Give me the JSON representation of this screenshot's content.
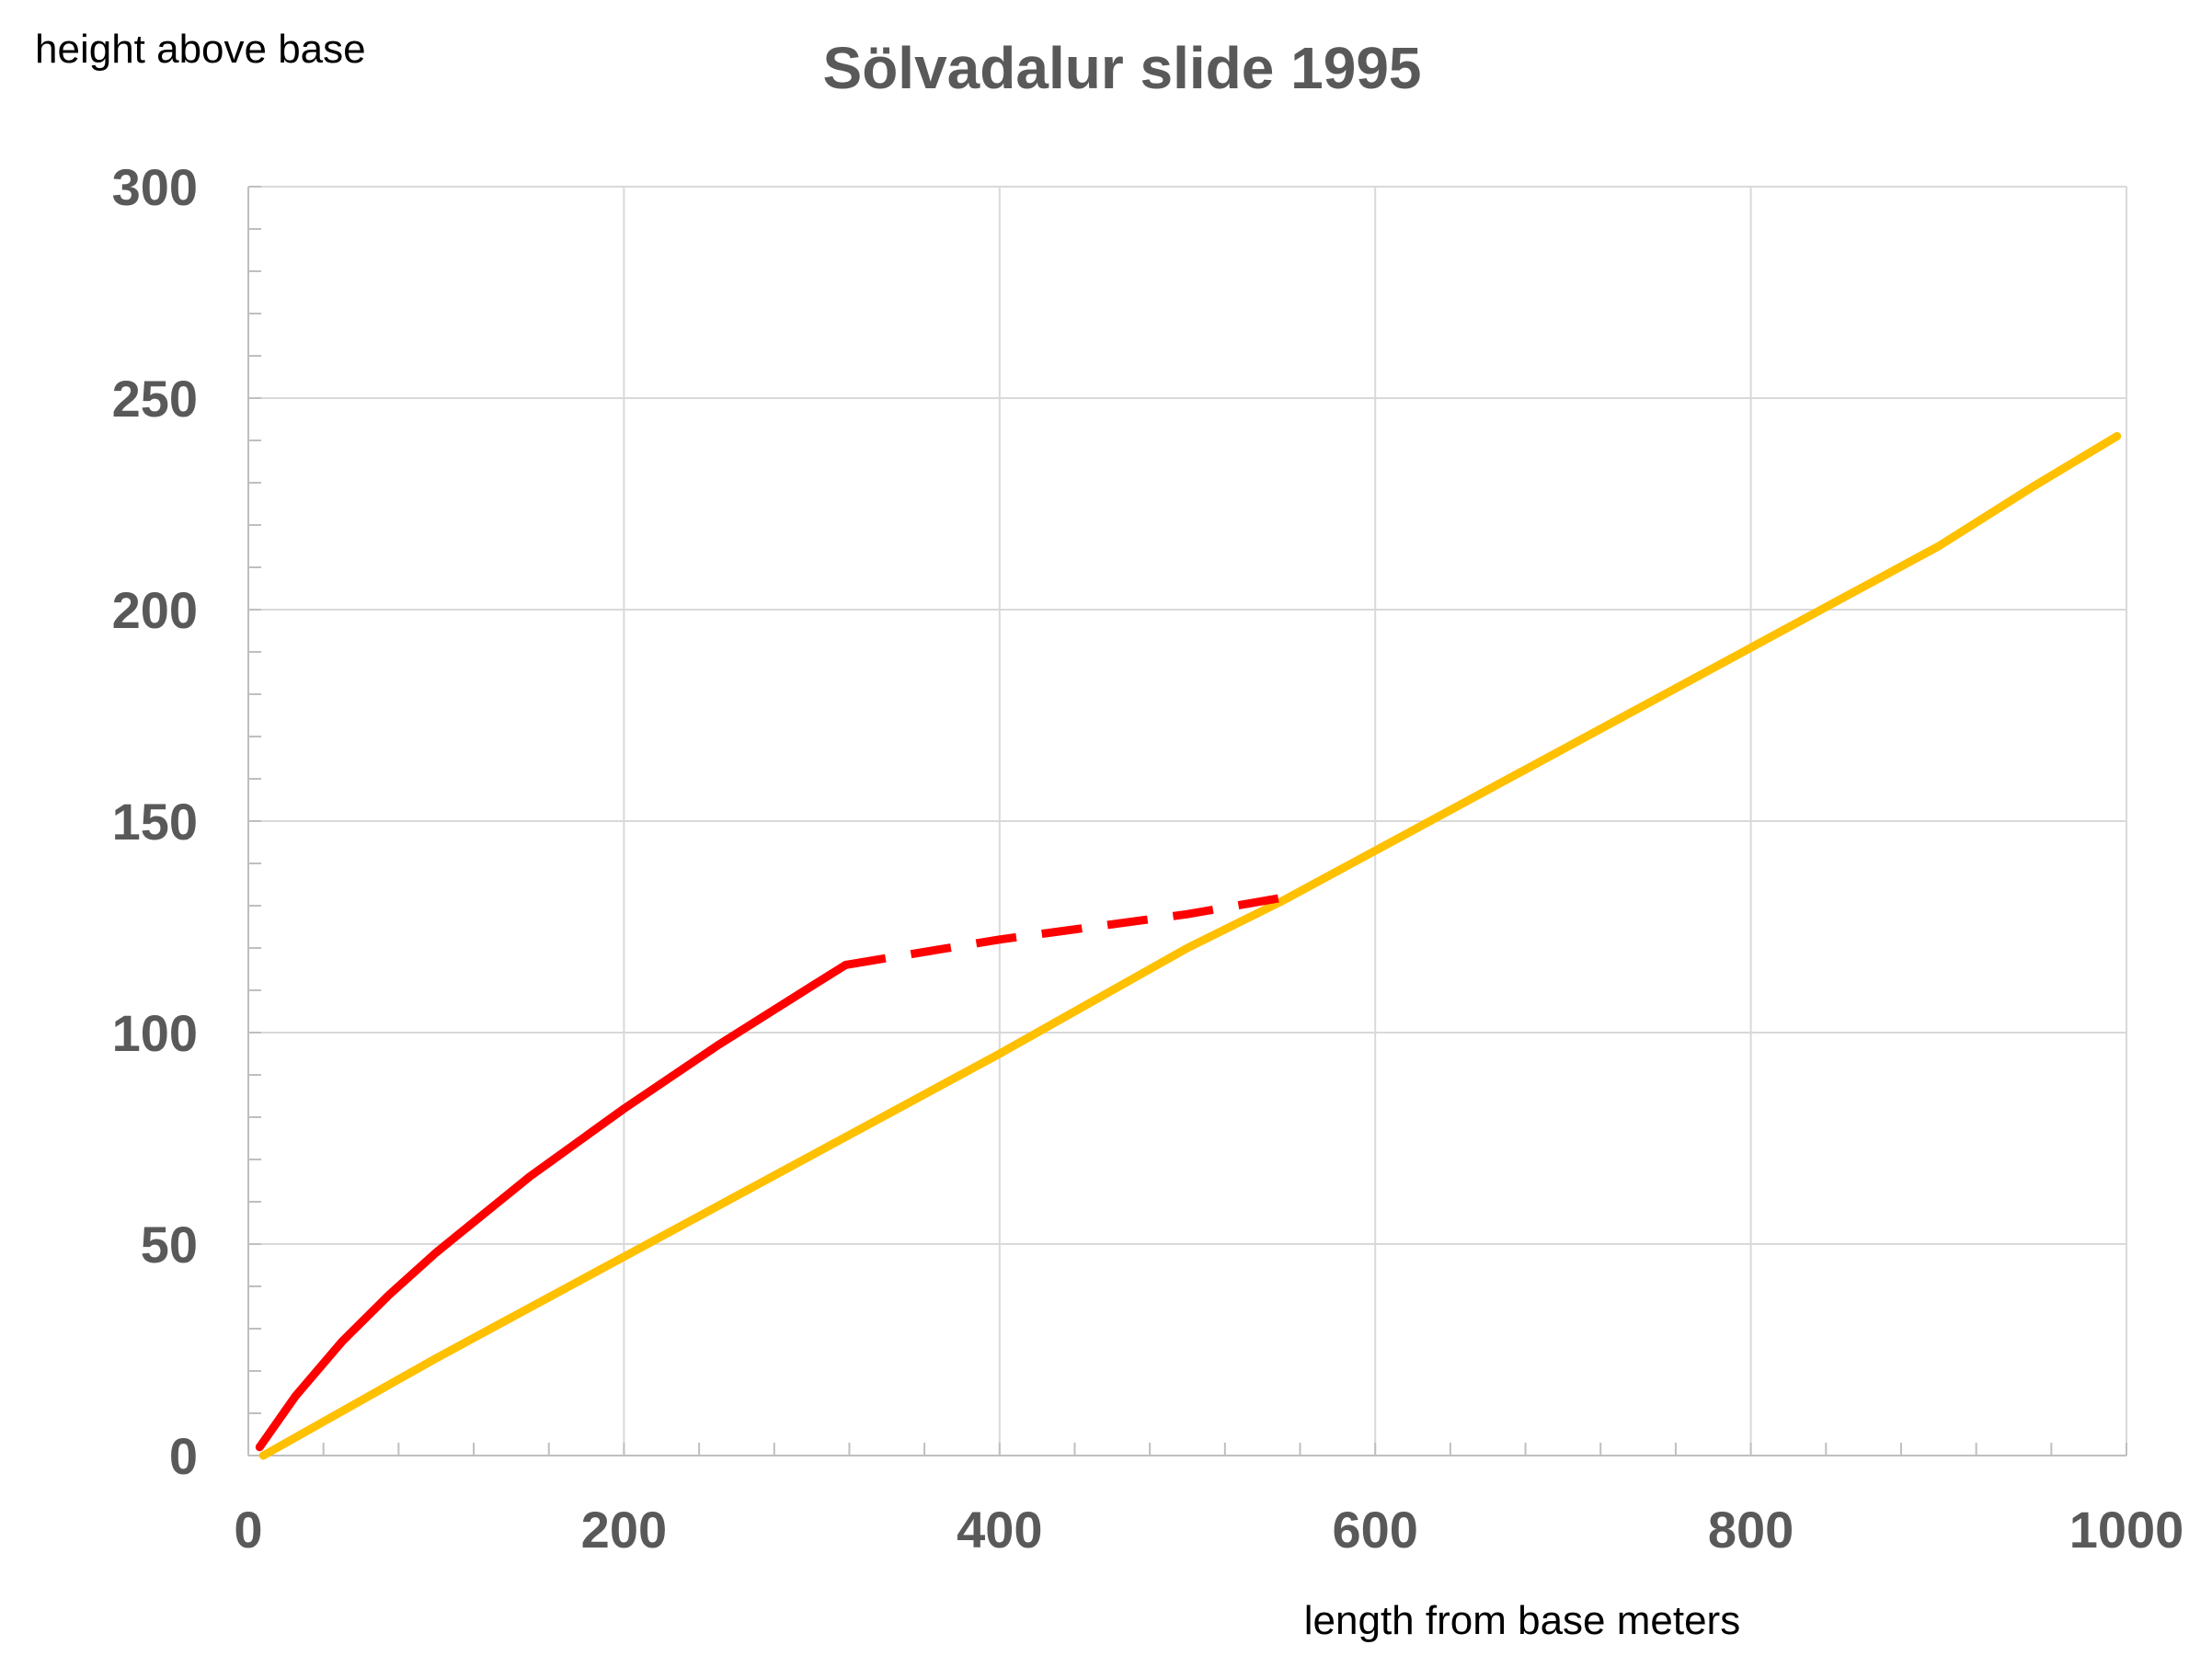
{
  "chart_data": {
    "type": "line",
    "title": "Sölvadalur slide 1995",
    "xlabel": "length from base meters",
    "ylabel": "height above base",
    "xlim": [
      0,
      1000
    ],
    "ylim": [
      0,
      300
    ],
    "x_ticks": [
      "0",
      "200",
      "400",
      "600",
      "800",
      "1000"
    ],
    "y_ticks": [
      "0",
      "50",
      "100",
      "150",
      "200",
      "250",
      "300"
    ],
    "grid": true,
    "legend": "none",
    "series": [
      {
        "color": "#FFC000",
        "style": "solid",
        "x": [
          8,
          100,
          200,
          300,
          400,
          500,
          550,
          600,
          700,
          800,
          900,
          950,
          995
        ],
        "y": [
          0,
          23,
          47,
          71,
          95,
          120,
          131,
          143,
          167,
          191,
          215,
          229,
          241
        ]
      },
      {
        "color": "#FF0000",
        "style": "solid",
        "x": [
          6,
          25,
          50,
          75,
          100,
          150,
          200,
          250,
          300,
          318
        ],
        "y": [
          2,
          14,
          27,
          38,
          48,
          66,
          82,
          97,
          111,
          116
        ]
      },
      {
        "color": "#FF0000",
        "style": "dashed",
        "x": [
          318,
          400,
          500,
          552
        ],
        "y": [
          116,
          122,
          128,
          132
        ]
      }
    ]
  }
}
